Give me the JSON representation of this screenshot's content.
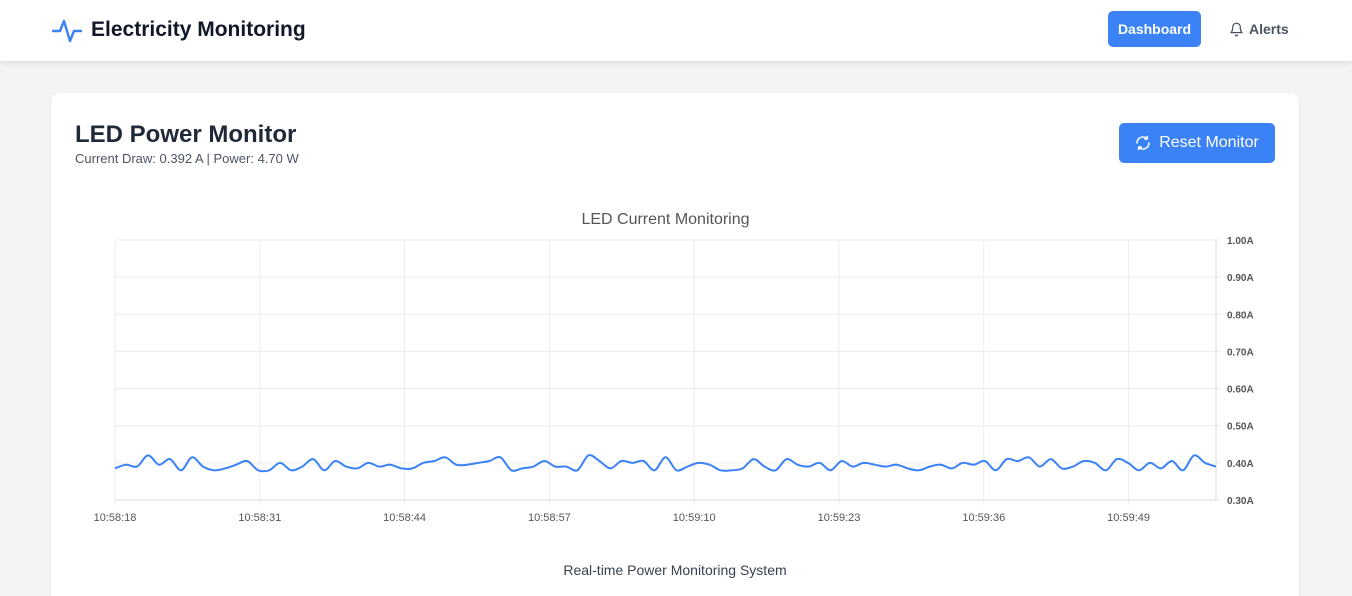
{
  "app": {
    "title": "Electricity Monitoring",
    "brand_icon": "pulse-icon",
    "accent_color": "#3b82f6"
  },
  "nav": {
    "dashboard_label": "Dashboard",
    "alerts_label": "Alerts",
    "alerts_icon": "bell-icon"
  },
  "card": {
    "title": "LED Power Monitor",
    "subtitle": "Current Draw: 0.392 A | Power: 4.70 W",
    "reset_label": "Reset Monitor",
    "reset_icon": "refresh-icon"
  },
  "footer": {
    "text": "Real-time Power Monitoring System"
  },
  "chart_data": {
    "type": "line",
    "title": "LED Current Monitoring",
    "ylim": [
      0.3,
      1.0
    ],
    "y_ticks": [
      "1.00A",
      "0.90A",
      "0.80A",
      "0.70A",
      "0.60A",
      "0.50A",
      "0.40A",
      "0.30A"
    ],
    "y_axis_side": "right",
    "x_ticks": [
      "10:58:18",
      "10:58:31",
      "10:58:44",
      "10:58:57",
      "10:59:10",
      "10:59:23",
      "10:59:36",
      "10:59:49"
    ],
    "grid": true,
    "line_color": "#3b82f6",
    "series": [
      {
        "values": [
          0.385,
          0.395,
          0.39,
          0.42,
          0.395,
          0.41,
          0.38,
          0.415,
          0.39,
          0.38,
          0.385,
          0.395,
          0.405,
          0.38,
          0.38,
          0.4,
          0.38,
          0.39,
          0.41,
          0.38,
          0.405,
          0.39,
          0.385,
          0.4,
          0.39,
          0.395,
          0.385,
          0.385,
          0.4,
          0.405,
          0.415,
          0.395,
          0.395,
          0.4,
          0.405,
          0.415,
          0.38,
          0.385,
          0.39,
          0.405,
          0.39,
          0.39,
          0.38,
          0.42,
          0.405,
          0.385,
          0.405,
          0.4,
          0.405,
          0.38,
          0.415,
          0.38,
          0.39,
          0.4,
          0.395,
          0.38,
          0.38,
          0.385,
          0.41,
          0.39,
          0.38,
          0.41,
          0.395,
          0.39,
          0.4,
          0.38,
          0.405,
          0.39,
          0.4,
          0.395,
          0.39,
          0.395,
          0.385,
          0.38,
          0.39,
          0.395,
          0.385,
          0.4,
          0.395,
          0.405,
          0.38,
          0.41,
          0.405,
          0.415,
          0.39,
          0.41,
          0.385,
          0.39,
          0.405,
          0.4,
          0.38,
          0.41,
          0.4,
          0.38,
          0.4,
          0.385,
          0.405,
          0.38,
          0.42,
          0.4,
          0.39
        ]
      }
    ]
  }
}
